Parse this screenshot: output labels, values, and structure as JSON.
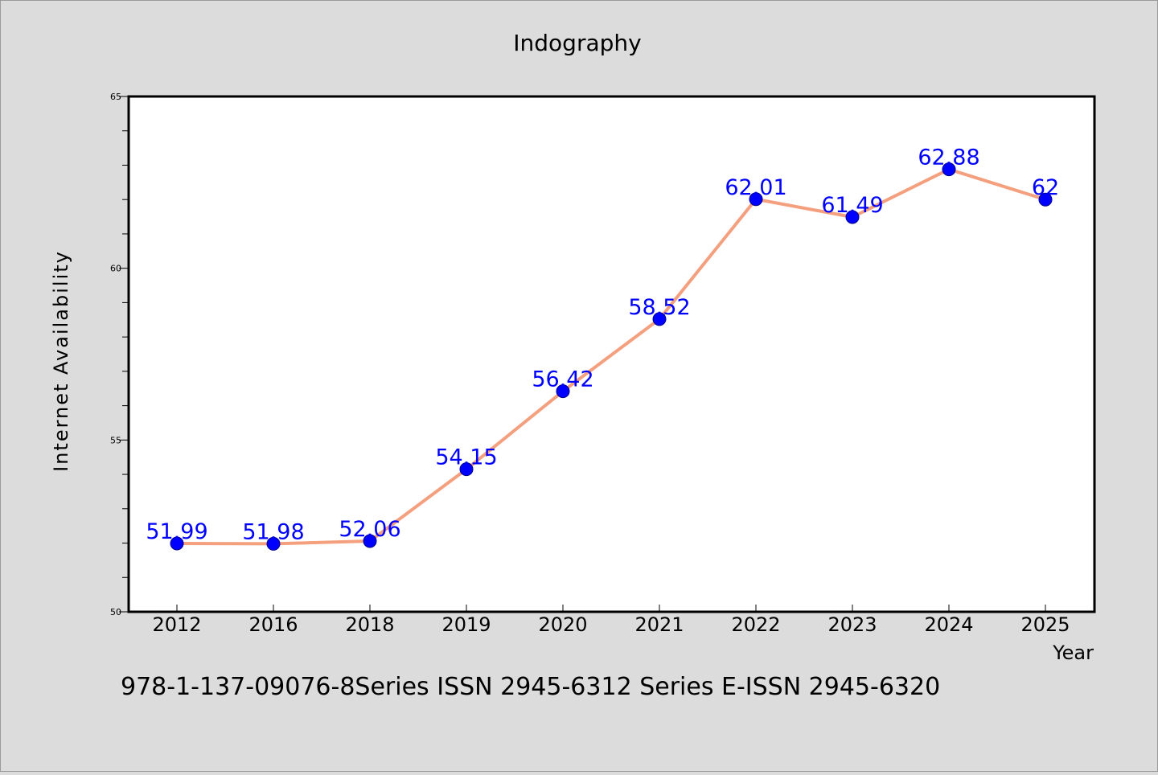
{
  "colors": {
    "background": "#dcdcdc",
    "plot_background": "#ffffff",
    "line": "#f4a07e",
    "marker": "#0000ff",
    "data_label": "#0000ff",
    "text": "#000000"
  },
  "chart_data": {
    "type": "line",
    "title": "Indography",
    "xlabel": "Year",
    "ylabel": "Internet Availability",
    "categories": [
      "2012",
      "2016",
      "2018",
      "2019",
      "2020",
      "2021",
      "2022",
      "2023",
      "2024",
      "2025"
    ],
    "series": [
      {
        "values": [
          51.99,
          51.98,
          52.06,
          54.15,
          56.42,
          58.52,
          62.01,
          61.49,
          62.88,
          62
        ]
      }
    ],
    "data_labels": [
      "51.99",
      "51.98",
      "52.06",
      "54.15",
      "56.42",
      "58.52",
      "62.01",
      "61.49",
      "62.88",
      "62"
    ],
    "ylim": [
      50,
      65
    ],
    "y_ticks": [
      50,
      55,
      60,
      65
    ],
    "y_tick_labels": [
      "50",
      "55",
      "60",
      "65"
    ],
    "y_minor_step": 1,
    "grid": false,
    "legend": "none"
  },
  "footer": {
    "text": "978-1-137-09076-8Series ISSN 2945-6312 Series E-ISSN 2945-6320"
  }
}
